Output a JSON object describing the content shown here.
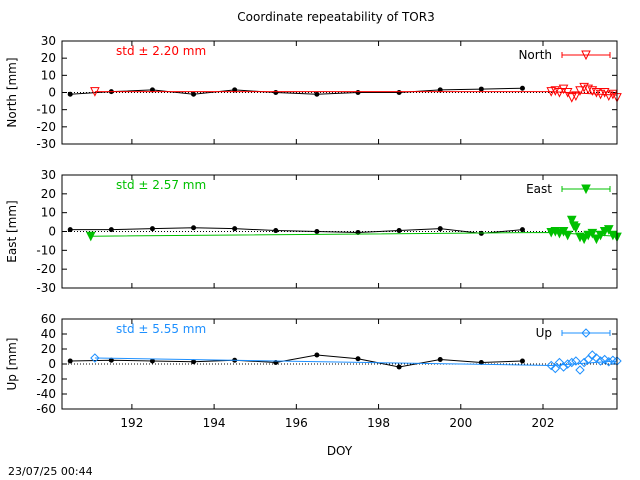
{
  "title": "Coordinate repeatability of TOR3",
  "footer_timestamp": "23/07/25 00:44",
  "chart_data": [
    {
      "type": "scatter",
      "panel": "north",
      "ylabel": "North [mm]",
      "ylim": [
        -30,
        30
      ],
      "yticks": [
        -30,
        -20,
        -10,
        0,
        10,
        20,
        30
      ],
      "xlim": [
        190.3,
        203.8
      ],
      "xticks": [
        192,
        194,
        196,
        198,
        200,
        202
      ],
      "xlabel": "",
      "std_text": "std ± 2.20 mm",
      "legend": "North",
      "legend_position": "top-right",
      "color": "#ff0000",
      "marker": "triangle-down-open",
      "reference": {
        "x": [
          190.5,
          191.5,
          192.5,
          193.5,
          194.5,
          195.5,
          196.5,
          197.5,
          198.5,
          199.5,
          200.5,
          201.5
        ],
        "y": [
          -1,
          0.5,
          1.5,
          -1,
          1.5,
          0,
          -1,
          0,
          0,
          1.5,
          2,
          2.5
        ]
      },
      "series": {
        "line_x": [
          191.1,
          202.2,
          203.8
        ],
        "line_y": [
          0.5,
          0.5,
          -1.5
        ],
        "points_x": [
          191.1,
          202.2,
          202.3,
          202.4,
          202.5,
          202.6,
          202.7,
          202.8,
          202.9,
          203.0,
          203.1,
          203.2,
          203.3,
          203.4,
          203.5,
          203.6,
          203.7,
          203.8
        ],
        "points_y": [
          0.5,
          0.5,
          1,
          0,
          2,
          0,
          -3,
          -2,
          1,
          3,
          2,
          1,
          0,
          -1,
          0,
          -2,
          -1,
          -3
        ]
      }
    },
    {
      "type": "scatter",
      "panel": "east",
      "ylabel": "East [mm]",
      "ylim": [
        -30,
        30
      ],
      "yticks": [
        -30,
        -20,
        -10,
        0,
        10,
        20,
        30
      ],
      "xlim": [
        190.3,
        203.8
      ],
      "xticks": [
        192,
        194,
        196,
        198,
        200,
        202
      ],
      "xlabel": "",
      "std_text": "std ± 2.57 mm",
      "legend": "East",
      "legend_position": "top-right",
      "color": "#00c000",
      "marker": "triangle-down-filled",
      "reference": {
        "x": [
          190.5,
          191.5,
          192.5,
          193.5,
          194.5,
          195.5,
          196.5,
          197.5,
          198.5,
          199.5,
          200.5,
          201.5
        ],
        "y": [
          1,
          1,
          1.5,
          2,
          1.5,
          0.5,
          0,
          -0.5,
          0.5,
          1.5,
          -1,
          1
        ]
      },
      "series": {
        "line_x": [
          191.0,
          202.2,
          203.8
        ],
        "line_y": [
          -2.5,
          -0.5,
          -2.5
        ],
        "points_x": [
          191.0,
          202.2,
          202.3,
          202.4,
          202.5,
          202.6,
          202.7,
          202.75,
          202.8,
          202.9,
          203.0,
          203.1,
          203.2,
          203.3,
          203.4,
          203.5,
          203.6,
          203.7,
          203.8
        ],
        "points_y": [
          -2.5,
          -0.5,
          0,
          -1,
          0,
          -2,
          6,
          3,
          2,
          -3,
          -4,
          -2,
          -1,
          -4,
          -2,
          0,
          1,
          -2,
          -3
        ]
      }
    },
    {
      "type": "scatter",
      "panel": "up",
      "ylabel": "Up [mm]",
      "ylim": [
        -60,
        60
      ],
      "yticks": [
        -60,
        -40,
        -20,
        0,
        20,
        40,
        60
      ],
      "xlim": [
        190.3,
        203.8
      ],
      "xticks": [
        192,
        194,
        196,
        198,
        200,
        202
      ],
      "xlabel": "DOY",
      "std_text": "std ± 5.55 mm",
      "legend": "Up",
      "legend_position": "top-right",
      "color": "#1e90ff",
      "marker": "diamond-open",
      "reference": {
        "x": [
          190.5,
          191.5,
          192.5,
          193.5,
          194.5,
          195.5,
          196.5,
          197.5,
          198.5,
          199.5,
          200.5,
          201.5
        ],
        "y": [
          4,
          5,
          4,
          3,
          5,
          2,
          12,
          7,
          -4,
          6,
          2,
          4
        ]
      },
      "series": {
        "line_x": [
          191.1,
          202.2,
          203.8
        ],
        "line_y": [
          8,
          -2,
          4
        ],
        "points_x": [
          191.1,
          202.2,
          202.3,
          202.4,
          202.5,
          202.6,
          202.7,
          202.8,
          202.9,
          203.0,
          203.1,
          203.2,
          203.3,
          203.4,
          203.5,
          203.6,
          203.7,
          203.8
        ],
        "points_y": [
          8,
          -2,
          -6,
          2,
          -4,
          0,
          2,
          4,
          -8,
          2,
          6,
          12,
          8,
          4,
          6,
          3,
          5,
          4
        ]
      }
    }
  ]
}
